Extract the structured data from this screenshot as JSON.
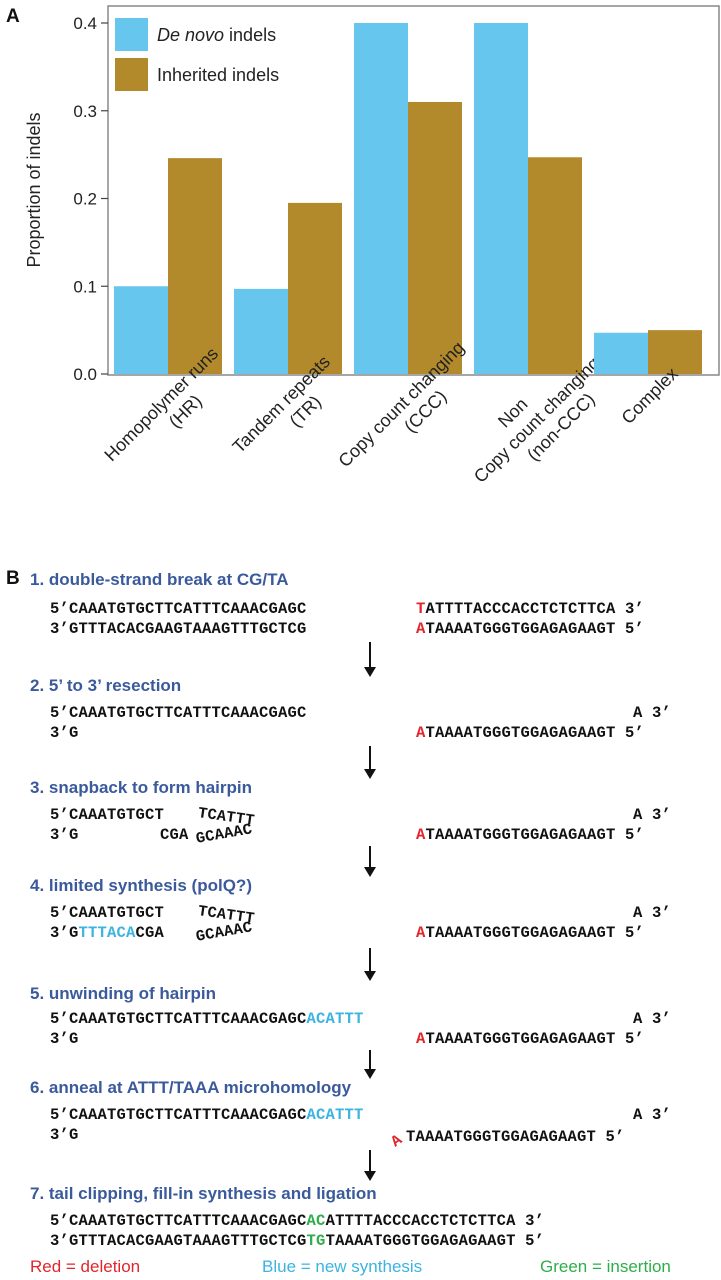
{
  "panel_a_letter": "A",
  "panel_b_letter": "B",
  "chart_data": {
    "type": "bar",
    "categories": [
      [
        "Homopolymer runs",
        "(HR)"
      ],
      [
        "Tandem repeats",
        "(TR)"
      ],
      [
        "Copy count changing",
        "(CCC)"
      ],
      [
        "Non",
        "Copy count changing",
        "(non-CCC)"
      ],
      [
        "Complex"
      ]
    ],
    "series": [
      {
        "name_italic": "De novo",
        "name_rest": " indels",
        "color": "#67c6ee",
        "values": [
          0.1,
          0.097,
          0.4,
          0.4,
          0.047
        ]
      },
      {
        "name_italic": "",
        "name_rest": "Inherited indels",
        "color": "#b38a2b",
        "values": [
          0.246,
          0.195,
          0.31,
          0.247,
          0.05
        ]
      }
    ],
    "ylabel": "Proportion of indels",
    "xlabel": "",
    "ylim": [
      0,
      0.4
    ],
    "yticks": [
      "0.0",
      "0.1",
      "0.2",
      "0.3",
      "0.4"
    ],
    "legend": "top-left",
    "grid": false
  },
  "steps": [
    {
      "title": "1. double-strand break at CG/TA"
    },
    {
      "title": "2. 5’ to 3’ resection"
    },
    {
      "title": "3. snapback to form hairpin"
    },
    {
      "title": "4. limited synthesis (polQ?)"
    },
    {
      "title": "5. unwinding of hairpin"
    },
    {
      "title": "6. anneal at ATTT/TAAA microhomology"
    },
    {
      "title": "7. tail clipping, fill-in synthesis and ligation"
    }
  ],
  "seqs": {
    "s1_top_left": "5’CAAATGTGCTTCATTTCAAACGAGC",
    "s1_top_red": "T",
    "s1_top_right": "ATTTTACCCACCTCTCTTCA 3’",
    "s1_bot_left": "3’GTTTACACGAAGTAAAGTTTGCTCG",
    "s1_bot_red": "A",
    "s1_bot_right": "TAAAATGGGTGGAGAGAAGT 5’",
    "s2_top_left": "5’CAAATGTGCTTCATTTCAAACGAGC",
    "s2_top_right": "A 3’",
    "s2_bot_left": "3’G",
    "s2_bot_red": "A",
    "s2_bot_right": "TAAAATGGGTGGAGAGAAGT 5’",
    "s3_top_left": "5’CAAATGTGCT",
    "s3_top_arc": "TCATTT",
    "s3_top_right": "A 3’",
    "s3_bot_left": "3’G",
    "s3_bot_mid": "CGA",
    "s3_bot_arc": "GCAAAC",
    "s3_bot_red": "A",
    "s3_bot_right": "TAAAATGGGTGGAGAGAAGT 5’",
    "s4_top_left": "5’CAAATGTGCT",
    "s4_top_arc": "TCATTT",
    "s4_top_right": "A 3’",
    "s4_bot_left": "3’G",
    "s4_bot_blue": "TTTACA",
    "s4_bot_mid": "CGA",
    "s4_bot_arc": "GCAAAC",
    "s4_bot_red": "A",
    "s4_bot_right": "TAAAATGGGTGGAGAGAAGT 5’",
    "s5_top_left": "5’CAAATGTGCTTCATTTCAAACGAGC",
    "s5_top_blue": "ACATTT",
    "s5_top_right": "A 3’",
    "s5_bot_left": "3’G",
    "s5_bot_red": "A",
    "s5_bot_right": "TAAAATGGGTGGAGAGAAGT 5’",
    "s6_top_left": "5’CAAATGTGCTTCATTTCAAACGAGC",
    "s6_top_blue": "ACATTT",
    "s6_top_right": "A 3’",
    "s6_bot_left": "3’G",
    "s6_bot_red": "A",
    "s6_bot_right": "TAAAATGGGTGGAGAGAAGT 5’",
    "s7_top_left": "5’CAAATGTGCTTCATTTCAAACGAGC",
    "s7_top_green": "AC",
    "s7_top_right": "ATTTTACCCACCTCTCTTCA 3’",
    "s7_bot_left": "3’GTTTACACGAAGTAAAGTTTGCTCG",
    "s7_bot_green": "TG",
    "s7_bot_right": "TAAAATGGGTGGAGAGAAGT 5’"
  },
  "legend_footer": {
    "red": "Red = deletion",
    "blue": "Blue = new synthesis",
    "green": "Green = insertion"
  },
  "colors": {
    "deletion": "#e0262c",
    "synthesis": "#3bb4e0",
    "insertion": "#2eae4a",
    "title": "#3a5a9c"
  }
}
